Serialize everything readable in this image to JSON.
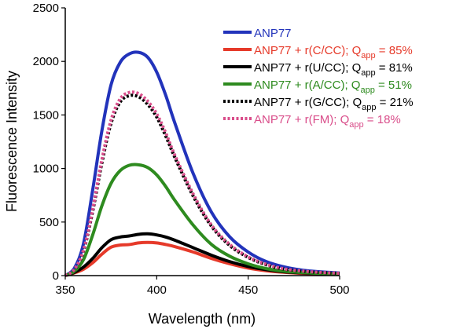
{
  "chart_data": {
    "type": "line",
    "xlabel": "Wavelength (nm)",
    "ylabel": "Fluorescence Intensity",
    "xlim": [
      350,
      500
    ],
    "ylim": [
      0,
      2500
    ],
    "xticks": [
      350,
      400,
      450,
      500
    ],
    "yticks": [
      0,
      500,
      1000,
      1500,
      2000,
      2500
    ],
    "grid": false,
    "legend_position": "top-right",
    "series": [
      {
        "name": "ANP77",
        "color": "#2233bb",
        "line_style": "solid",
        "x": [
          350,
          355,
          360,
          365,
          370,
          375,
          380,
          385,
          390,
          395,
          400,
          405,
          410,
          420,
          430,
          440,
          450,
          460,
          470,
          480,
          490,
          500
        ],
        "y": [
          0,
          70,
          300,
          800,
          1350,
          1780,
          1990,
          2070,
          2085,
          2040,
          1900,
          1680,
          1420,
          950,
          590,
          360,
          220,
          130,
          80,
          50,
          35,
          25
        ]
      },
      {
        "name": "ANP77 + r(C/CC); Qapp = 85%",
        "color": "#e63a2a",
        "line_style": "solid",
        "x": [
          350,
          355,
          360,
          365,
          370,
          375,
          380,
          385,
          390,
          395,
          400,
          405,
          410,
          420,
          430,
          440,
          450,
          460,
          470,
          480,
          490,
          500
        ],
        "y": [
          0,
          25,
          60,
          120,
          200,
          265,
          285,
          290,
          305,
          310,
          305,
          290,
          270,
          220,
          160,
          110,
          70,
          45,
          30,
          20,
          15,
          10
        ]
      },
      {
        "name": "ANP77 + r(U/CC); Qapp = 81%",
        "color": "#000000",
        "line_style": "solid",
        "x": [
          350,
          355,
          360,
          365,
          370,
          375,
          380,
          385,
          390,
          395,
          400,
          405,
          410,
          420,
          430,
          440,
          450,
          460,
          470,
          480,
          490,
          500
        ],
        "y": [
          0,
          30,
          80,
          160,
          260,
          335,
          360,
          370,
          385,
          390,
          380,
          360,
          330,
          260,
          190,
          130,
          85,
          55,
          35,
          25,
          18,
          12
        ]
      },
      {
        "name": "ANP77 + r(A/CC); Qapp = 51%",
        "color": "#2e8b1f",
        "line_style": "solid",
        "x": [
          350,
          355,
          360,
          365,
          370,
          375,
          380,
          385,
          390,
          395,
          400,
          405,
          410,
          420,
          430,
          440,
          450,
          460,
          470,
          480,
          490,
          500
        ],
        "y": [
          0,
          40,
          150,
          380,
          650,
          860,
          980,
          1030,
          1035,
          1010,
          940,
          830,
          700,
          470,
          290,
          180,
          110,
          65,
          40,
          28,
          20,
          15
        ]
      },
      {
        "name": "ANP77 + r(G/CC); Qapp = 21%",
        "color": "#000000",
        "line_style": "dotted",
        "x": [
          350,
          355,
          360,
          365,
          370,
          375,
          380,
          385,
          390,
          395,
          400,
          405,
          410,
          420,
          430,
          440,
          450,
          460,
          470,
          480,
          490,
          500
        ],
        "y": [
          0,
          55,
          230,
          600,
          1050,
          1420,
          1620,
          1680,
          1670,
          1600,
          1480,
          1300,
          1100,
          740,
          460,
          280,
          170,
          100,
          60,
          40,
          28,
          20
        ]
      },
      {
        "name": "ANP77 + r(FM); Qapp = 18%",
        "color": "#d94d8a",
        "line_style": "dotted",
        "x": [
          350,
          355,
          360,
          365,
          370,
          375,
          380,
          385,
          390,
          395,
          400,
          405,
          410,
          420,
          430,
          440,
          450,
          460,
          470,
          480,
          490,
          500
        ],
        "y": [
          0,
          58,
          240,
          620,
          1080,
          1450,
          1650,
          1710,
          1700,
          1630,
          1510,
          1330,
          1120,
          760,
          470,
          290,
          175,
          105,
          62,
          42,
          30,
          22
        ]
      }
    ],
    "legend": [
      {
        "main": "ANP77",
        "sub": "",
        "tail": "",
        "color": "#2233bb",
        "line_style": "solid"
      },
      {
        "main": "ANP77 + r(C/CC); Q",
        "sub": "app",
        "tail": " = 85%",
        "color": "#e63a2a",
        "line_style": "solid"
      },
      {
        "main": "ANP77 + r(U/CC); Q",
        "sub": "app",
        "tail": " = 81%",
        "color": "#000000",
        "line_style": "solid"
      },
      {
        "main": "ANP77 + r(A/CC); Q",
        "sub": "app",
        "tail": " = 51%",
        "color": "#2e8b1f",
        "line_style": "solid"
      },
      {
        "main": "ANP77 + r(G/CC); Q",
        "sub": "app",
        "tail": " = 21%",
        "color": "#000000",
        "line_style": "dotted"
      },
      {
        "main": "ANP77 + r(FM); Q",
        "sub": "app",
        "tail": " = 18%",
        "color": "#d94d8a",
        "line_style": "dotted"
      }
    ]
  }
}
